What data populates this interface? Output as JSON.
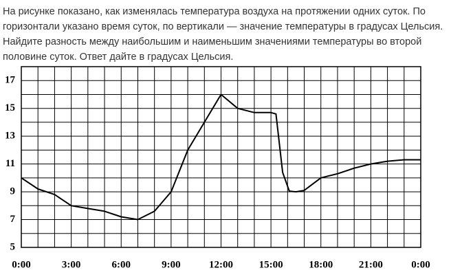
{
  "text_lines": [
    "На рисунке показано, как изменялась температура воздуха на протяжении одних суток. По",
    "горизонтали указано время суток, по вертикали — значение температуры в градусах Цельсия.",
    "Найдите разность между наибольшим и наименьшим значениями температуры во второй",
    "половине суток. Ответ дайте в градусах Цельсия."
  ],
  "chart_data": {
    "type": "line",
    "x": [
      0,
      1,
      2,
      3,
      4,
      5,
      6,
      7,
      8,
      9,
      10,
      11,
      12,
      13,
      14,
      15,
      15.3,
      15.7,
      16.1,
      16.5,
      17,
      18,
      19,
      20,
      21,
      22,
      23,
      24
    ],
    "values": [
      10,
      9.2,
      8.8,
      8,
      7.8,
      7.6,
      7.2,
      7,
      7.6,
      9,
      12,
      14,
      16,
      15,
      14.7,
      14.7,
      14.6,
      10.4,
      9.05,
      9,
      9.1,
      10,
      10.3,
      10.7,
      11,
      11.2,
      11.3,
      11.3
    ],
    "color": "#000000",
    "xlim": [
      0,
      24
    ],
    "xticks": [
      {
        "value": 0,
        "label": "0:00"
      },
      {
        "value": 3,
        "label": "3:00"
      },
      {
        "value": 6,
        "label": "6:00"
      },
      {
        "value": 9,
        "label": "9:00"
      },
      {
        "value": 12,
        "label": "12:00"
      },
      {
        "value": 15,
        "label": "15:00"
      },
      {
        "value": 18,
        "label": "18:00"
      },
      {
        "value": 21,
        "label": "21:00"
      },
      {
        "value": 24,
        "label": "0:00"
      }
    ],
    "xgrid": [
      0,
      1,
      2,
      3,
      4,
      5,
      6,
      7,
      8,
      9,
      10,
      11,
      12,
      13,
      14,
      15,
      16,
      17,
      18,
      19,
      20,
      21,
      22,
      23,
      24
    ],
    "ylim": [
      5,
      18
    ],
    "yticks": [
      5,
      7,
      9,
      11,
      13,
      15,
      17
    ],
    "ygrid": [
      5,
      6,
      7,
      8,
      9,
      10,
      11,
      12,
      13,
      14,
      15,
      16,
      17,
      18
    ],
    "grid": true
  }
}
